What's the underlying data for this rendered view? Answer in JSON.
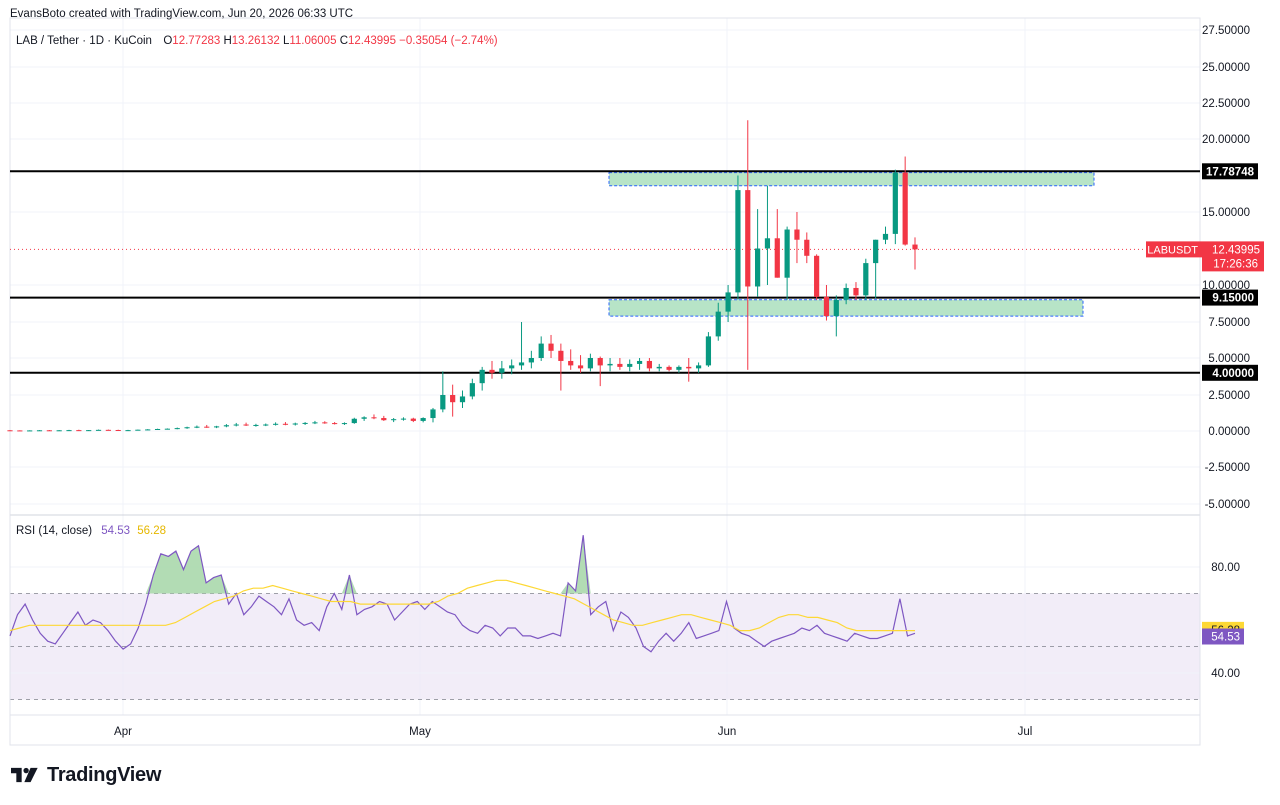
{
  "header": {
    "credit": "EvansBoto created with TradingView.com, Jun 20, 2026 06:33 UTC",
    "symbol": "LAB / Tether · 1D · KuCoin",
    "o_label": "O",
    "o_value": "12.77283",
    "h_label": "H",
    "h_value": "13.26132",
    "l_label": "L",
    "l_value": "11.06005",
    "c_label": "C",
    "c_value": "12.43995",
    "change": "−0.35054 (−2.74%)"
  },
  "branding": {
    "logo_text": "TradingView"
  },
  "colors": {
    "up": "#089981",
    "down": "#f23645",
    "zone_fill": "#b7e4c7",
    "zone_border": "#2962ff",
    "rsi_line": "#7e57c2",
    "rsi_ma": "#fdd835",
    "rsi_band": "#ede7f6",
    "grid": "#f0f3fa",
    "level_line": "#000000"
  },
  "chart_data": [
    {
      "type": "candlestick",
      "title": "LAB / Tether · 1D · KuCoin",
      "y_ticks": [
        "27.50000",
        "25.00000",
        "22.50000",
        "20.00000",
        "15.00000",
        "10.00000",
        "7.50000",
        "5.00000",
        "2.50000",
        "0.00000",
        "-2.50000",
        "-5.00000"
      ],
      "x_labels": [
        "Apr",
        "May",
        "Jun",
        "Jul"
      ],
      "horizontal_levels": [
        {
          "value": 17.78748,
          "label": "17.78748"
        },
        {
          "value": 9.15,
          "label": "9.15000"
        },
        {
          "value": 4.0,
          "label": "4.00000"
        }
      ],
      "zones": [
        {
          "from": 16.8,
          "to": 17.7
        },
        {
          "from": 7.9,
          "to": 9.0
        }
      ],
      "last_price": {
        "symbol": "LABUSDT",
        "value": "12.43995",
        "countdown": "17:26:36"
      },
      "candles": [
        [
          0.05,
          0.06,
          0.02,
          0.04
        ],
        [
          0.04,
          0.05,
          0.01,
          0.03
        ],
        [
          0.03,
          0.05,
          0.0,
          0.04
        ],
        [
          0.04,
          0.06,
          0.02,
          0.05
        ],
        [
          0.05,
          0.07,
          0.03,
          0.04
        ],
        [
          0.04,
          0.06,
          0.02,
          0.05
        ],
        [
          0.05,
          0.08,
          0.03,
          0.06
        ],
        [
          0.06,
          0.09,
          0.04,
          0.05
        ],
        [
          0.05,
          0.07,
          0.03,
          0.06
        ],
        [
          0.06,
          0.1,
          0.04,
          0.08
        ],
        [
          0.08,
          0.1,
          0.05,
          0.07
        ],
        [
          0.07,
          0.09,
          0.04,
          0.05
        ],
        [
          0.05,
          0.08,
          0.03,
          0.06
        ],
        [
          0.06,
          0.1,
          0.04,
          0.09
        ],
        [
          0.09,
          0.13,
          0.06,
          0.11
        ],
        [
          0.11,
          0.16,
          0.08,
          0.14
        ],
        [
          0.14,
          0.18,
          0.1,
          0.16
        ],
        [
          0.16,
          0.24,
          0.12,
          0.2
        ],
        [
          0.2,
          0.3,
          0.15,
          0.26
        ],
        [
          0.26,
          0.38,
          0.2,
          0.3
        ],
        [
          0.3,
          0.42,
          0.22,
          0.28
        ],
        [
          0.28,
          0.36,
          0.2,
          0.32
        ],
        [
          0.32,
          0.48,
          0.26,
          0.4
        ],
        [
          0.4,
          0.56,
          0.32,
          0.45
        ],
        [
          0.45,
          0.58,
          0.35,
          0.38
        ],
        [
          0.38,
          0.5,
          0.3,
          0.42
        ],
        [
          0.42,
          0.52,
          0.34,
          0.45
        ],
        [
          0.45,
          0.6,
          0.38,
          0.5
        ],
        [
          0.5,
          0.62,
          0.4,
          0.48
        ],
        [
          0.48,
          0.58,
          0.38,
          0.52
        ],
        [
          0.52,
          0.62,
          0.42,
          0.56
        ],
        [
          0.56,
          0.7,
          0.48,
          0.6
        ],
        [
          0.6,
          0.68,
          0.5,
          0.55
        ],
        [
          0.55,
          0.62,
          0.45,
          0.5
        ],
        [
          0.5,
          0.6,
          0.42,
          0.55
        ],
        [
          0.55,
          0.92,
          0.5,
          0.85
        ],
        [
          0.85,
          1.02,
          0.7,
          0.95
        ],
        [
          0.95,
          1.15,
          0.82,
          0.9
        ],
        [
          0.9,
          1.05,
          0.7,
          0.75
        ],
        [
          0.75,
          0.9,
          0.62,
          0.82
        ],
        [
          0.82,
          0.95,
          0.72,
          0.86
        ],
        [
          0.86,
          0.92,
          0.62,
          0.7
        ],
        [
          0.7,
          0.95,
          0.6,
          0.9
        ],
        [
          0.9,
          1.6,
          0.6,
          1.5
        ],
        [
          1.5,
          4.1,
          1.3,
          2.5
        ],
        [
          2.5,
          3.2,
          1.0,
          2.0
        ],
        [
          2.0,
          2.8,
          1.6,
          2.4
        ],
        [
          2.4,
          3.6,
          2.2,
          3.3
        ],
        [
          3.3,
          4.4,
          2.8,
          4.2
        ],
        [
          4.2,
          4.8,
          3.6,
          4.0
        ],
        [
          4.0,
          4.8,
          3.6,
          4.3
        ],
        [
          4.3,
          4.9,
          3.9,
          4.5
        ],
        [
          4.5,
          7.5,
          4.2,
          4.7
        ],
        [
          4.7,
          5.5,
          4.3,
          5.0
        ],
        [
          5.0,
          6.5,
          4.8,
          6.0
        ],
        [
          6.0,
          6.6,
          5.0,
          5.5
        ],
        [
          5.5,
          6.0,
          2.8,
          4.8
        ],
        [
          4.8,
          5.6,
          4.2,
          4.5
        ],
        [
          4.5,
          5.2,
          4.0,
          4.3
        ],
        [
          4.3,
          5.3,
          4.1,
          5.0
        ],
        [
          5.0,
          5.1,
          3.1,
          4.5
        ],
        [
          4.5,
          5.0,
          4.1,
          4.6
        ],
        [
          4.6,
          5.0,
          4.2,
          4.4
        ],
        [
          4.4,
          4.9,
          4.1,
          4.6
        ],
        [
          4.6,
          5.0,
          4.2,
          4.8
        ],
        [
          4.8,
          5.0,
          4.1,
          4.3
        ],
        [
          4.3,
          4.6,
          4.1,
          4.4
        ],
        [
          4.4,
          4.5,
          4.1,
          4.2
        ],
        [
          4.2,
          4.5,
          4.0,
          4.4
        ],
        [
          4.4,
          5.0,
          3.4,
          4.3
        ],
        [
          4.3,
          4.7,
          4.0,
          4.5
        ],
        [
          4.5,
          6.8,
          4.4,
          6.5
        ],
        [
          6.5,
          8.8,
          6.2,
          8.2
        ],
        [
          8.2,
          10.0,
          7.5,
          9.5
        ],
        [
          9.5,
          17.5,
          9.0,
          16.5
        ],
        [
          16.5,
          21.3,
          4.2,
          9.9
        ],
        [
          9.9,
          15.2,
          9.2,
          12.5
        ],
        [
          12.5,
          16.8,
          10.0,
          13.2
        ],
        [
          13.2,
          15.2,
          10.5,
          10.5
        ],
        [
          10.5,
          14.0,
          9.0,
          13.8
        ],
        [
          13.8,
          15.0,
          11.5,
          13.1
        ],
        [
          13.1,
          13.6,
          11.5,
          12.0
        ],
        [
          12.0,
          12.1,
          9.0,
          9.2
        ],
        [
          9.2,
          10.0,
          7.6,
          7.9
        ],
        [
          7.9,
          9.3,
          6.5,
          9.0
        ],
        [
          9.0,
          10.1,
          8.7,
          9.8
        ],
        [
          9.8,
          10.2,
          9.0,
          9.3
        ],
        [
          9.3,
          11.8,
          9.0,
          11.5
        ],
        [
          11.5,
          13.1,
          9.1,
          13.1
        ],
        [
          13.1,
          14.0,
          12.8,
          13.5
        ],
        [
          13.5,
          17.9,
          12.8,
          17.7
        ],
        [
          17.7,
          18.8,
          12.7,
          12.77
        ],
        [
          12.77,
          13.26,
          11.06,
          12.44
        ]
      ]
    },
    {
      "type": "line",
      "title": "RSI (14, close)",
      "values_label_rsi": "54.53",
      "values_label_ma": "56.28",
      "y_ticks": [
        "80.00",
        "40.00"
      ],
      "bands": {
        "upper": 70,
        "middle": 50,
        "lower": 30
      },
      "series": [
        {
          "name": "RSI",
          "values": [
            54,
            62,
            66,
            60,
            55,
            52,
            51,
            55,
            59,
            63,
            58,
            60,
            59,
            56,
            52,
            49,
            51,
            57,
            66,
            77,
            85,
            84,
            86,
            79,
            86,
            88,
            74,
            76,
            77,
            66,
            70,
            62,
            65,
            69,
            67,
            65,
            62,
            68,
            60,
            58,
            59,
            56,
            65,
            70,
            64,
            77,
            62,
            64,
            65,
            67,
            66,
            60,
            63,
            66,
            67,
            64,
            67,
            65,
            63,
            62,
            58,
            56,
            55,
            58,
            57,
            54,
            57,
            57,
            54,
            54,
            53,
            54,
            55,
            54,
            74,
            71,
            92,
            62,
            65,
            67,
            56,
            63,
            61,
            57,
            50,
            48,
            52,
            55,
            52,
            55,
            59,
            53,
            54,
            55,
            56,
            67,
            57,
            55,
            54,
            52,
            50,
            52,
            53,
            54,
            55,
            57,
            56,
            58,
            55,
            54,
            53,
            52,
            55,
            54,
            53,
            53,
            54,
            55,
            68,
            54,
            55
          ],
          "color": "#7e57c2"
        },
        {
          "name": "MA",
          "values": [
            56,
            57,
            58,
            58,
            58,
            58,
            58,
            58,
            58,
            58,
            58,
            58,
            58,
            58,
            58,
            58,
            58,
            59,
            61,
            63,
            65,
            67,
            68,
            69,
            71,
            72,
            72,
            73,
            72,
            71,
            70,
            69,
            68,
            67,
            67,
            67,
            66,
            66,
            66,
            66,
            66,
            66,
            66,
            66,
            67,
            69,
            70,
            72,
            73,
            74,
            75,
            75,
            74,
            73,
            72,
            71,
            70,
            69,
            68,
            66,
            64,
            62,
            60,
            59,
            58,
            58,
            59,
            60,
            61,
            62,
            62,
            61,
            60,
            59,
            58,
            56,
            56,
            57,
            59,
            61,
            62,
            62,
            61,
            61,
            60,
            59,
            57,
            56,
            56,
            56,
            56,
            56,
            56,
            56
          ],
          "color": "#fdd835"
        }
      ]
    }
  ]
}
